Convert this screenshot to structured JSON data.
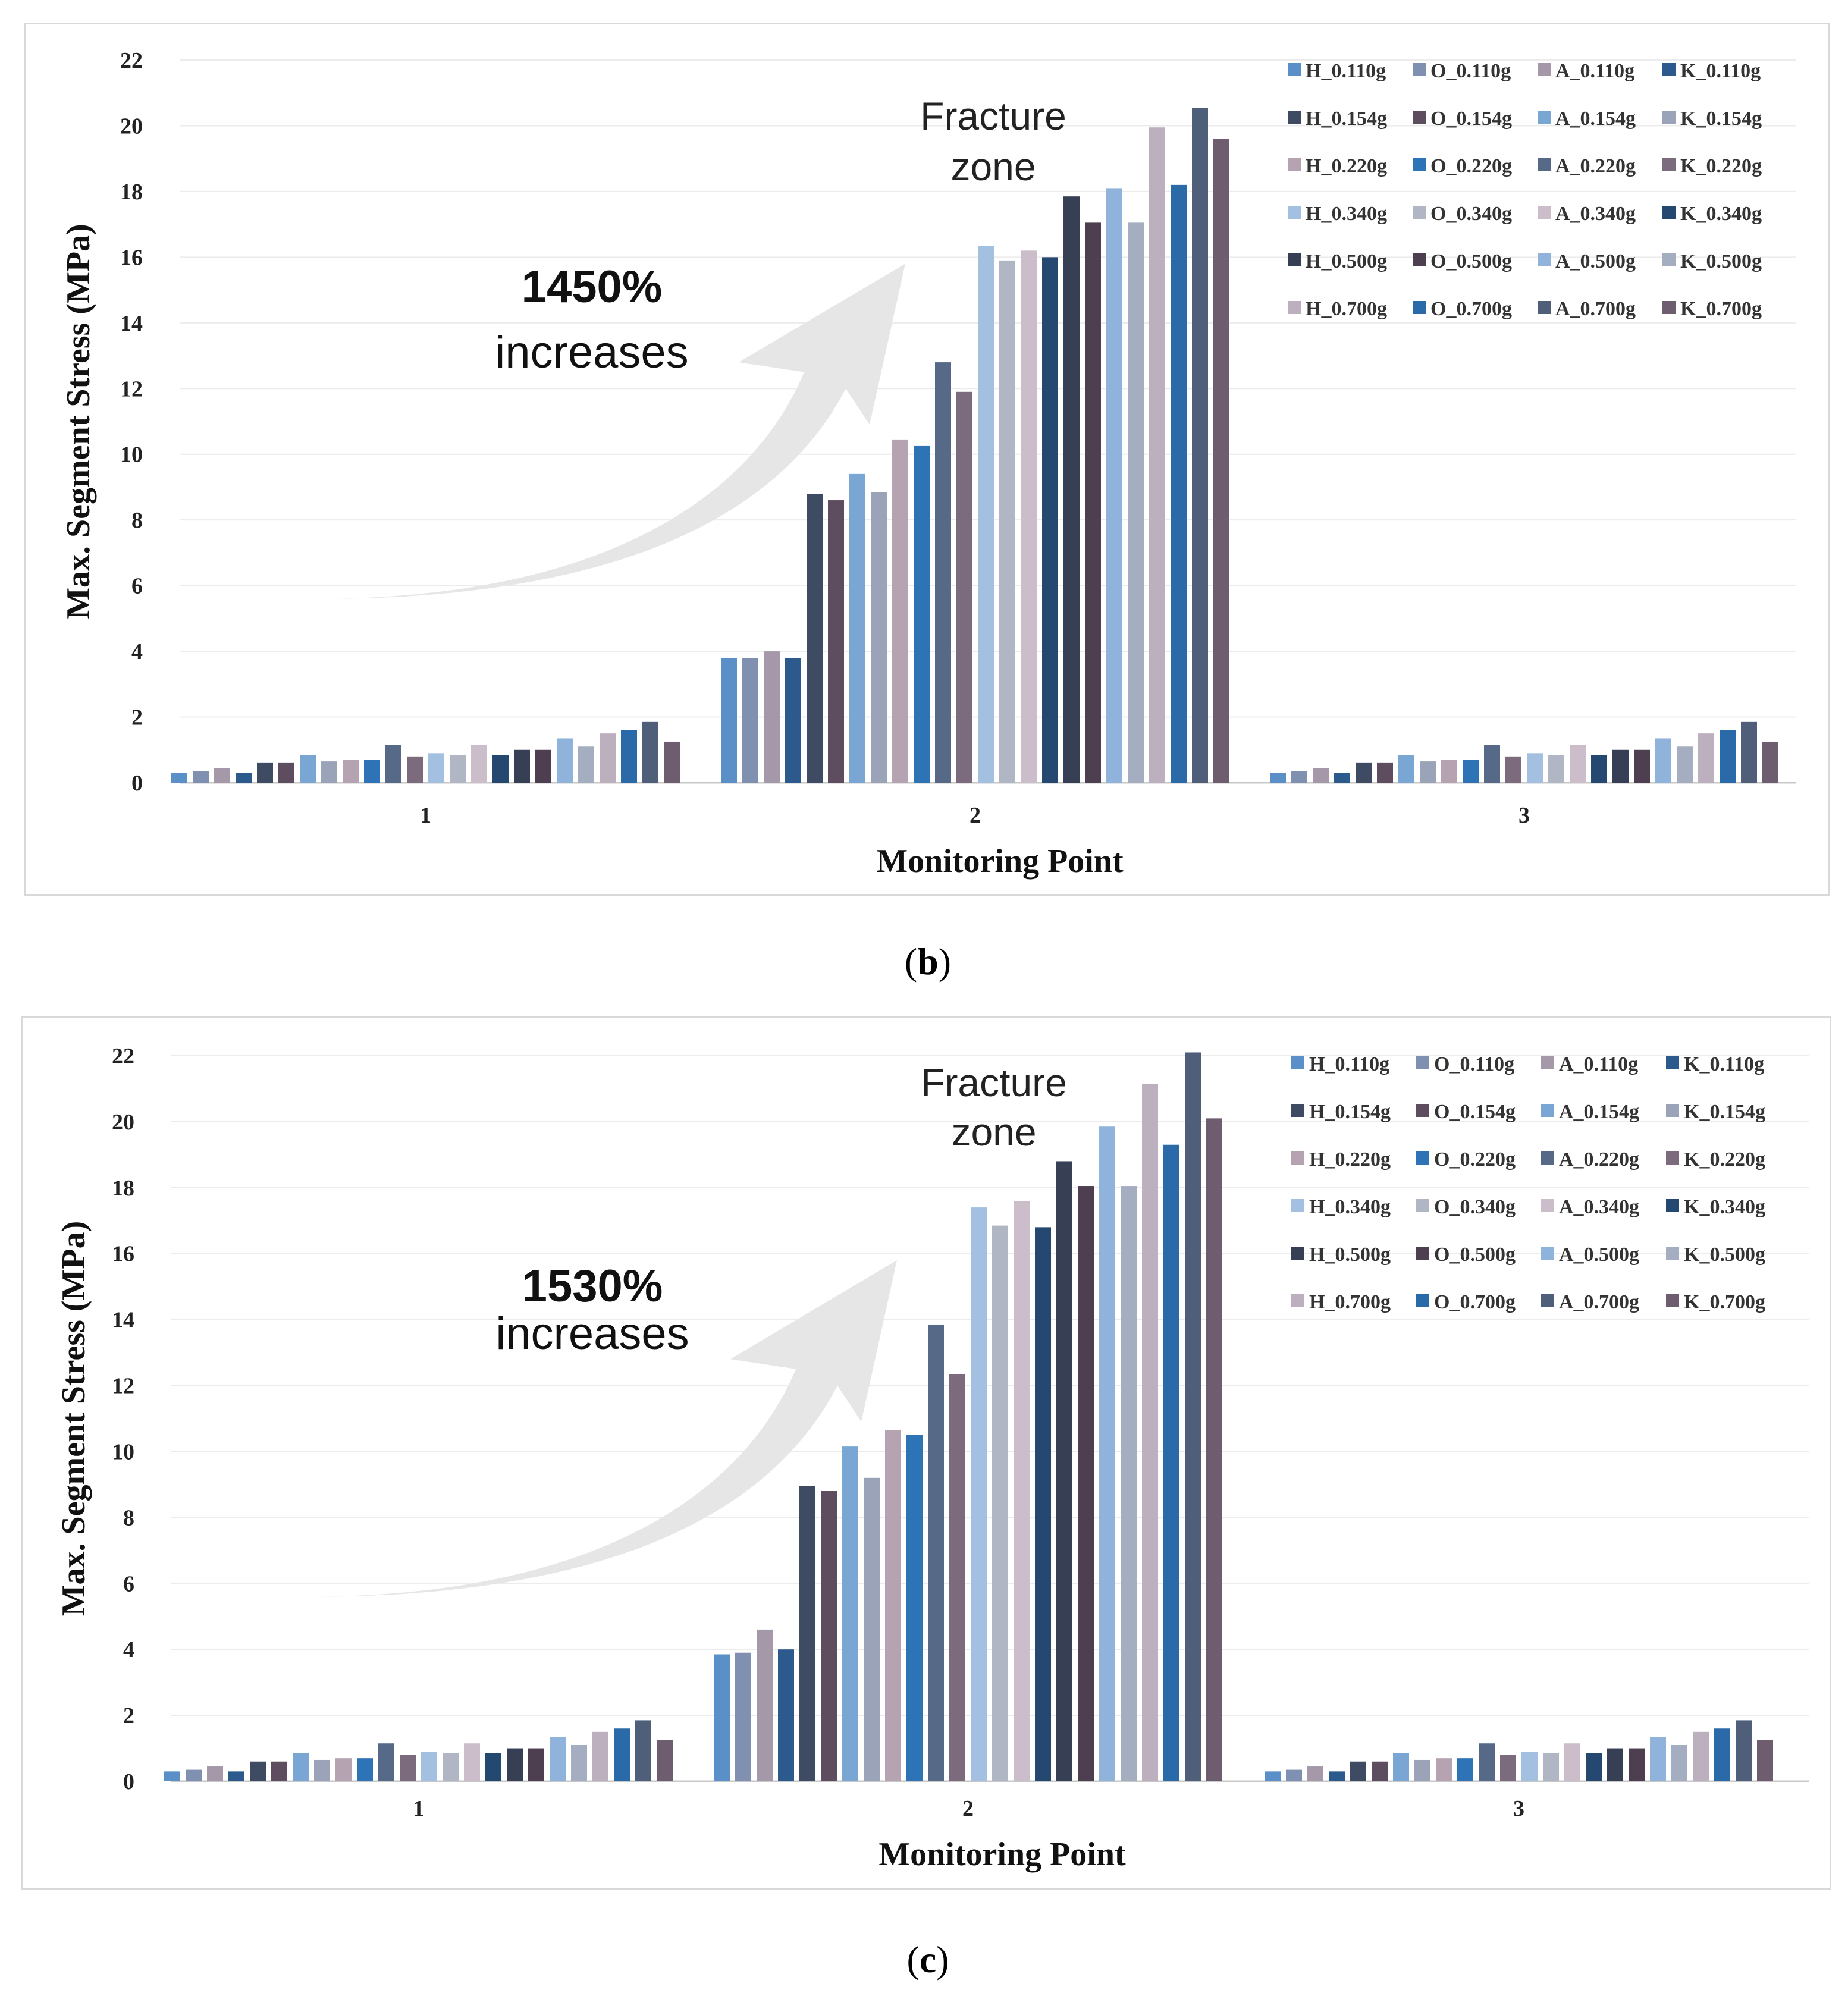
{
  "chart_data": [
    {
      "type": "bar",
      "panel": "(b)",
      "title": "",
      "xlabel": "Monitoring Point",
      "ylabel": "Max. Segment Stress (MPa)",
      "ylim": [
        0,
        22
      ],
      "yticks": [
        "0",
        "2",
        "4",
        "6",
        "8",
        "10",
        "12",
        "14",
        "16",
        "18",
        "20",
        "22"
      ],
      "categories": [
        "1",
        "2",
        "3"
      ],
      "grid": true,
      "legend_position": "top-right",
      "annotations": {
        "increase": "1450%",
        "increase_word": "increases",
        "zone_line1": "Fracture",
        "zone_line2": "zone"
      },
      "series": [
        {
          "name": "H_0.110g",
          "color": "#5b8fc7",
          "values": [
            0.3,
            3.8,
            0.3
          ]
        },
        {
          "name": "O_0.110g",
          "color": "#7f90b0",
          "values": [
            0.35,
            3.8,
            0.35
          ]
        },
        {
          "name": "A_0.110g",
          "color": "#a599a9",
          "values": [
            0.45,
            4.0,
            0.45
          ]
        },
        {
          "name": "K_0.110g",
          "color": "#2c5a8c",
          "values": [
            0.3,
            3.8,
            0.3
          ]
        },
        {
          "name": "H_0.154g",
          "color": "#3e4b63",
          "values": [
            0.6,
            8.8,
            0.6
          ]
        },
        {
          "name": "O_0.154g",
          "color": "#5e4d5f",
          "values": [
            0.6,
            8.6,
            0.6
          ]
        },
        {
          "name": "A_0.154g",
          "color": "#7aa6d4",
          "values": [
            0.85,
            9.4,
            0.85
          ]
        },
        {
          "name": "K_0.154g",
          "color": "#9ba3b8",
          "values": [
            0.65,
            8.85,
            0.65
          ]
        },
        {
          "name": "H_0.220g",
          "color": "#b5a3b2",
          "values": [
            0.7,
            10.45,
            0.7
          ]
        },
        {
          "name": "O_0.220g",
          "color": "#2d73b5",
          "values": [
            0.7,
            10.25,
            0.7
          ]
        },
        {
          "name": "A_0.220g",
          "color": "#566a87",
          "values": [
            1.15,
            12.8,
            1.15
          ]
        },
        {
          "name": "K_0.220g",
          "color": "#7c6b7d",
          "values": [
            0.8,
            11.9,
            0.8
          ]
        },
        {
          "name": "H_0.340g",
          "color": "#a4c0e0",
          "values": [
            0.9,
            16.35,
            0.9
          ]
        },
        {
          "name": "O_0.340g",
          "color": "#b1b6c4",
          "values": [
            0.85,
            15.9,
            0.85
          ]
        },
        {
          "name": "A_0.340g",
          "color": "#cbbdc9",
          "values": [
            1.15,
            16.2,
            1.15
          ]
        },
        {
          "name": "K_0.340g",
          "color": "#254870",
          "values": [
            0.85,
            16.0,
            0.85
          ]
        },
        {
          "name": "H_0.500g",
          "color": "#363f54",
          "values": [
            1.0,
            17.85,
            1.0
          ]
        },
        {
          "name": "O_0.500g",
          "color": "#4e3f50",
          "values": [
            1.0,
            17.05,
            1.0
          ]
        },
        {
          "name": "A_0.500g",
          "color": "#8fb3db",
          "values": [
            1.35,
            18.1,
            1.35
          ]
        },
        {
          "name": "K_0.500g",
          "color": "#a5aec0",
          "values": [
            1.1,
            17.05,
            1.1
          ]
        },
        {
          "name": "H_0.700g",
          "color": "#bcb0be",
          "values": [
            1.5,
            19.95,
            1.5
          ]
        },
        {
          "name": "O_0.700g",
          "color": "#2a6aa8",
          "values": [
            1.6,
            18.2,
            1.6
          ]
        },
        {
          "name": "A_0.700g",
          "color": "#4f5f7a",
          "values": [
            1.85,
            20.55,
            1.85
          ]
        },
        {
          "name": "K_0.700g",
          "color": "#6e5d6e",
          "values": [
            1.25,
            19.6,
            1.25
          ]
        }
      ]
    },
    {
      "type": "bar",
      "panel": "(c)",
      "title": "",
      "xlabel": "Monitoring Point",
      "ylabel": "Max. Segment Stress (MPa)",
      "ylim": [
        0,
        22
      ],
      "yticks": [
        "0",
        "2",
        "4",
        "6",
        "8",
        "10",
        "12",
        "14",
        "16",
        "18",
        "20",
        "22"
      ],
      "categories": [
        "1",
        "2",
        "3"
      ],
      "grid": true,
      "legend_position": "top-right",
      "annotations": {
        "increase": "1530%",
        "increase_word": "increases",
        "zone_line1": "Fracture",
        "zone_line2": "zone"
      },
      "series": [
        {
          "name": "H_0.110g",
          "color": "#5b8fc7",
          "values": [
            0.3,
            3.85,
            0.3
          ]
        },
        {
          "name": "O_0.110g",
          "color": "#7f90b0",
          "values": [
            0.35,
            3.9,
            0.35
          ]
        },
        {
          "name": "A_0.110g",
          "color": "#a599a9",
          "values": [
            0.45,
            4.6,
            0.45
          ]
        },
        {
          "name": "K_0.110g",
          "color": "#2c5a8c",
          "values": [
            0.3,
            4.0,
            0.3
          ]
        },
        {
          "name": "H_0.154g",
          "color": "#3e4b63",
          "values": [
            0.6,
            8.95,
            0.6
          ]
        },
        {
          "name": "O_0.154g",
          "color": "#5e4d5f",
          "values": [
            0.6,
            8.8,
            0.6
          ]
        },
        {
          "name": "A_0.154g",
          "color": "#7aa6d4",
          "values": [
            0.85,
            10.15,
            0.85
          ]
        },
        {
          "name": "K_0.154g",
          "color": "#9ba3b8",
          "values": [
            0.65,
            9.2,
            0.65
          ]
        },
        {
          "name": "H_0.220g",
          "color": "#b5a3b2",
          "values": [
            0.7,
            10.65,
            0.7
          ]
        },
        {
          "name": "O_0.220g",
          "color": "#2d73b5",
          "values": [
            0.7,
            10.5,
            0.7
          ]
        },
        {
          "name": "A_0.220g",
          "color": "#566a87",
          "values": [
            1.15,
            13.85,
            1.15
          ]
        },
        {
          "name": "K_0.220g",
          "color": "#7c6b7d",
          "values": [
            0.8,
            12.35,
            0.8
          ]
        },
        {
          "name": "H_0.340g",
          "color": "#a4c0e0",
          "values": [
            0.9,
            17.4,
            0.9
          ]
        },
        {
          "name": "O_0.340g",
          "color": "#b1b6c4",
          "values": [
            0.85,
            16.85,
            0.85
          ]
        },
        {
          "name": "A_0.340g",
          "color": "#cbbdc9",
          "values": [
            1.15,
            17.6,
            1.15
          ]
        },
        {
          "name": "K_0.340g",
          "color": "#254870",
          "values": [
            0.85,
            16.8,
            0.85
          ]
        },
        {
          "name": "H_0.500g",
          "color": "#363f54",
          "values": [
            1.0,
            18.8,
            1.0
          ]
        },
        {
          "name": "O_0.500g",
          "color": "#4e3f50",
          "values": [
            1.0,
            18.05,
            1.0
          ]
        },
        {
          "name": "A_0.500g",
          "color": "#8fb3db",
          "values": [
            1.35,
            19.85,
            1.35
          ]
        },
        {
          "name": "K_0.500g",
          "color": "#a5aec0",
          "values": [
            1.1,
            18.05,
            1.1
          ]
        },
        {
          "name": "H_0.700g",
          "color": "#bcb0be",
          "values": [
            1.5,
            21.15,
            1.5
          ]
        },
        {
          "name": "O_0.700g",
          "color": "#2a6aa8",
          "values": [
            1.6,
            19.3,
            1.6
          ]
        },
        {
          "name": "A_0.700g",
          "color": "#4f5f7a",
          "values": [
            1.85,
            22.1,
            1.85
          ]
        },
        {
          "name": "K_0.700g",
          "color": "#6e5d6e",
          "values": [
            1.25,
            20.1,
            1.25
          ]
        }
      ]
    }
  ],
  "panel_labels": {
    "b": "b",
    "c": "c"
  }
}
